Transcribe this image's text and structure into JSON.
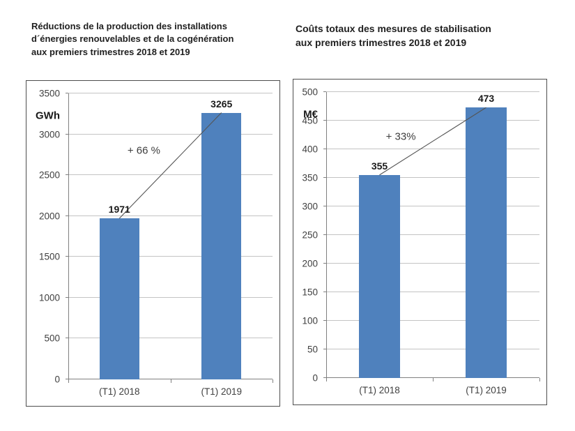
{
  "page": {
    "background": "#ffffff"
  },
  "colors": {
    "bar": "#4f81bd",
    "gridline": "#c3c3c3",
    "axis": "#808080",
    "frame": "#4d4d4d",
    "tick_text": "#3f3f3f",
    "data_label_text": "#1a1a1a",
    "trend_line": "#555555",
    "title_text": "#1f1f1f",
    "annotation_text": "#3d3d3d"
  },
  "chart_data": [
    {
      "type": "bar",
      "title_lines": [
        "Réductions de la production des installations",
        "d´énergies renouvelables et de la cogénération",
        "aux premiers trimestres 2018 et 2019"
      ],
      "unit": "GWh",
      "categories": [
        "(T1) 2018",
        "(T1) 2019"
      ],
      "values": [
        1971,
        3265
      ],
      "annotation": "+ 66 %",
      "ylim": [
        0,
        3500
      ],
      "ytick_step": 500,
      "bar_color": "#4f81bd",
      "grid": true,
      "legend": "none",
      "trend_line": true,
      "annotation_pos": {
        "left_pct": 37,
        "top_pct": 20
      }
    },
    {
      "type": "bar",
      "title_lines": [
        "Coûts totaux des mesures de stabilisation",
        "aux premiers trimestres 2018 et 2019"
      ],
      "unit": "M€",
      "categories": [
        "(T1) 2018",
        "(T1) 2019"
      ],
      "values": [
        355,
        473
      ],
      "annotation": "+ 33%",
      "ylim": [
        0,
        500
      ],
      "ytick_step": 50,
      "bar_color": "#4f81bd",
      "grid": true,
      "legend": "none",
      "trend_line": true,
      "annotation_pos": {
        "left_pct": 35,
        "top_pct": 15.5
      }
    }
  ]
}
